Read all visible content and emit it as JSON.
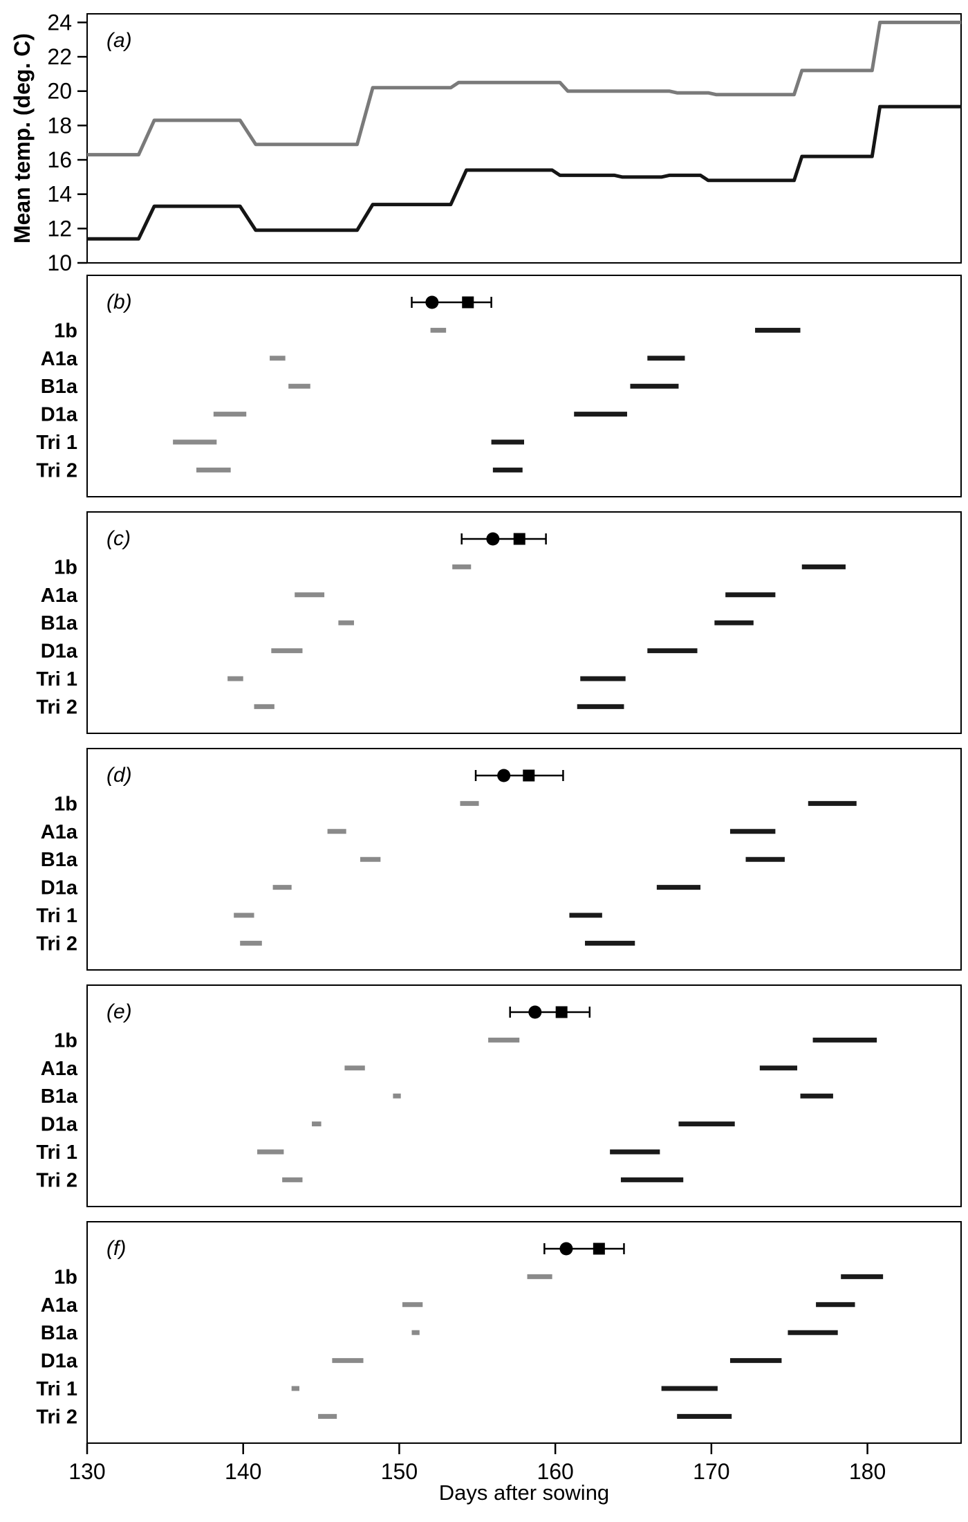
{
  "figure": {
    "xlabel": "Days after sowing",
    "ylabel": "Mean temp. (deg. C)"
  },
  "style": {
    "gray": "#8a8a8a",
    "black": "#1a1a1a"
  },
  "chart_data": [
    {
      "type": "line",
      "panel": "a",
      "letter": "(a)",
      "ylabel": "Mean temp. (deg. C)",
      "xlabel": "Days after sowing",
      "x_domain": [
        130,
        186
      ],
      "y_domain": [
        10,
        24.5
      ],
      "x_ticks": [
        130,
        140,
        150,
        160,
        170,
        180
      ],
      "y_ticks": [
        10,
        12,
        14,
        16,
        18,
        20,
        22,
        24
      ],
      "grid": false,
      "legend": "none",
      "series": [
        {
          "name": "upper-gray",
          "color": "#7a7a7a",
          "points": [
            [
              130,
              16.3
            ],
            [
              133.3,
              16.3
            ],
            [
              134.3,
              18.3
            ],
            [
              139.8,
              18.3
            ],
            [
              140.8,
              16.9
            ],
            [
              147.3,
              16.9
            ],
            [
              148.3,
              20.2
            ],
            [
              153.3,
              20.2
            ],
            [
              153.8,
              20.5
            ],
            [
              160.3,
              20.5
            ],
            [
              160.8,
              20.0
            ],
            [
              167.3,
              20.0
            ],
            [
              167.8,
              19.9
            ],
            [
              169.8,
              19.9
            ],
            [
              170.3,
              19.8
            ],
            [
              175.3,
              19.8
            ],
            [
              175.8,
              21.2
            ],
            [
              180.3,
              21.2
            ],
            [
              180.8,
              24.0
            ],
            [
              186,
              24.0
            ]
          ]
        },
        {
          "name": "lower-black",
          "color": "#151515",
          "points": [
            [
              130,
              11.4
            ],
            [
              133.3,
              11.4
            ],
            [
              134.3,
              13.3
            ],
            [
              139.8,
              13.3
            ],
            [
              140.8,
              11.9
            ],
            [
              147.3,
              11.9
            ],
            [
              148.3,
              13.4
            ],
            [
              153.3,
              13.4
            ],
            [
              154.3,
              15.4
            ],
            [
              159.8,
              15.4
            ],
            [
              160.3,
              15.1
            ],
            [
              163.8,
              15.1
            ],
            [
              164.3,
              15.0
            ],
            [
              166.8,
              15.0
            ],
            [
              167.3,
              15.1
            ],
            [
              169.3,
              15.1
            ],
            [
              169.8,
              14.8
            ],
            [
              175.3,
              14.8
            ],
            [
              175.8,
              16.2
            ],
            [
              180.3,
              16.2
            ],
            [
              180.8,
              19.1
            ],
            [
              186,
              19.1
            ]
          ]
        }
      ]
    },
    {
      "type": "interval",
      "panel": "b",
      "letter": "(b)",
      "error_bar": {
        "lo": 150.8,
        "circle": 152.1,
        "square": 154.4,
        "hi": 155.9
      },
      "rows": [
        {
          "label": "1b",
          "gray": [
            152.0,
            153.0
          ],
          "black": [
            172.8,
            175.7
          ]
        },
        {
          "label": "A1a",
          "gray": [
            141.7,
            142.7
          ],
          "black": [
            165.9,
            168.3
          ]
        },
        {
          "label": "B1a",
          "gray": [
            142.9,
            144.3
          ],
          "black": [
            164.8,
            167.9
          ]
        },
        {
          "label": "D1a",
          "gray": [
            138.1,
            140.2
          ],
          "black": [
            161.2,
            164.6
          ]
        },
        {
          "label": "Tri 1",
          "gray": [
            135.5,
            138.3
          ],
          "black": [
            155.9,
            158.0
          ]
        },
        {
          "label": "Tri 2",
          "gray": [
            137.0,
            139.2
          ],
          "black": [
            156.0,
            157.9
          ]
        }
      ]
    },
    {
      "type": "interval",
      "panel": "c",
      "letter": "(c)",
      "error_bar": {
        "lo": 154.0,
        "circle": 156.0,
        "square": 157.7,
        "hi": 159.4
      },
      "rows": [
        {
          "label": "1b",
          "gray": [
            153.4,
            154.6
          ],
          "black": [
            175.8,
            178.6
          ]
        },
        {
          "label": "A1a",
          "gray": [
            143.3,
            145.2
          ],
          "black": [
            170.9,
            174.1
          ]
        },
        {
          "label": "B1a",
          "gray": [
            146.1,
            147.1
          ],
          "black": [
            170.2,
            172.7
          ]
        },
        {
          "label": "D1a",
          "gray": [
            141.8,
            143.8
          ],
          "black": [
            165.9,
            169.1
          ]
        },
        {
          "label": "Tri 1",
          "gray": [
            139.0,
            140.0
          ],
          "black": [
            161.6,
            164.5
          ]
        },
        {
          "label": "Tri 2",
          "gray": [
            140.7,
            142.0
          ],
          "black": [
            161.4,
            164.4
          ]
        }
      ]
    },
    {
      "type": "interval",
      "panel": "d",
      "letter": "(d)",
      "error_bar": {
        "lo": 154.9,
        "circle": 156.7,
        "square": 158.3,
        "hi": 160.5
      },
      "rows": [
        {
          "label": "1b",
          "gray": [
            153.9,
            155.1
          ],
          "black": [
            176.2,
            179.3
          ]
        },
        {
          "label": "A1a",
          "gray": [
            145.4,
            146.6
          ],
          "black": [
            171.2,
            174.1
          ]
        },
        {
          "label": "B1a",
          "gray": [
            147.5,
            148.8
          ],
          "black": [
            172.2,
            174.7
          ]
        },
        {
          "label": "D1a",
          "gray": [
            141.9,
            143.1
          ],
          "black": [
            166.5,
            169.3
          ]
        },
        {
          "label": "Tri 1",
          "gray": [
            139.4,
            140.7
          ],
          "black": [
            160.9,
            163.0
          ]
        },
        {
          "label": "Tri 2",
          "gray": [
            139.8,
            141.2
          ],
          "black": [
            161.9,
            165.1
          ]
        }
      ]
    },
    {
      "type": "interval",
      "panel": "e",
      "letter": "(e)",
      "error_bar": {
        "lo": 157.1,
        "circle": 158.7,
        "square": 160.4,
        "hi": 162.2
      },
      "rows": [
        {
          "label": "1b",
          "gray": [
            155.7,
            157.7
          ],
          "black": [
            176.5,
            180.6
          ]
        },
        {
          "label": "A1a",
          "gray": [
            146.5,
            147.8
          ],
          "black": [
            173.1,
            175.5
          ]
        },
        {
          "label": "B1a",
          "gray": [
            149.6,
            150.1
          ],
          "black": [
            175.7,
            177.8
          ]
        },
        {
          "label": "D1a",
          "gray": [
            144.4,
            145.0
          ],
          "black": [
            167.9,
            171.5
          ]
        },
        {
          "label": "Tri 1",
          "gray": [
            140.9,
            142.6
          ],
          "black": [
            163.5,
            166.7
          ]
        },
        {
          "label": "Tri 2",
          "gray": [
            142.5,
            143.8
          ],
          "black": [
            164.2,
            168.2
          ]
        }
      ]
    },
    {
      "type": "interval",
      "panel": "f",
      "letter": "(f)",
      "error_bar": {
        "lo": 159.3,
        "circle": 160.7,
        "square": 162.8,
        "hi": 164.4
      },
      "rows": [
        {
          "label": "1b",
          "gray": [
            158.2,
            159.8
          ],
          "black": [
            178.3,
            181.0
          ]
        },
        {
          "label": "A1a",
          "gray": [
            150.2,
            151.5
          ],
          "black": [
            176.7,
            179.2
          ]
        },
        {
          "label": "B1a",
          "gray": [
            150.8,
            151.3
          ],
          "black": [
            174.9,
            178.1
          ]
        },
        {
          "label": "D1a",
          "gray": [
            145.7,
            147.7
          ],
          "black": [
            171.2,
            174.5
          ]
        },
        {
          "label": "Tri 1",
          "gray": [
            143.1,
            143.6
          ],
          "black": [
            166.8,
            170.4
          ]
        },
        {
          "label": "Tri 2",
          "gray": [
            144.8,
            146.0
          ],
          "black": [
            167.8,
            171.3
          ]
        }
      ]
    }
  ]
}
